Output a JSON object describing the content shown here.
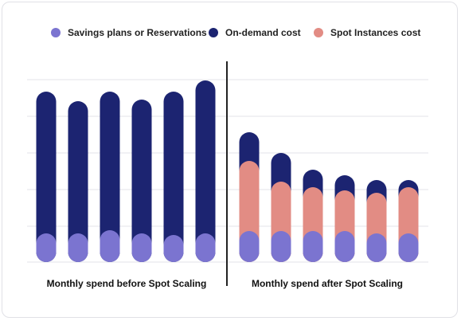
{
  "chart_data": {
    "type": "bar",
    "stacked": true,
    "grid": true,
    "legend_position": "top",
    "legend": [
      {
        "name": "Savings plans or Reservations",
        "color": "#7b74d0"
      },
      {
        "name": "On-demand cost",
        "color": "#1c2471"
      },
      {
        "name": "Spot Instances cost",
        "color": "#e28c84"
      }
    ],
    "groups": [
      {
        "label": "Monthly spend before Spot Scaling",
        "bars": [
          {
            "savings": 36,
            "spot": 0,
            "ondemand": 178
          },
          {
            "savings": 36,
            "spot": 0,
            "ondemand": 166
          },
          {
            "savings": 40,
            "spot": 0,
            "ondemand": 174
          },
          {
            "savings": 36,
            "spot": 0,
            "ondemand": 168
          },
          {
            "savings": 34,
            "spot": 0,
            "ondemand": 180
          },
          {
            "savings": 36,
            "spot": 0,
            "ondemand": 192
          }
        ]
      },
      {
        "label": "Monthly spend after Spot Scaling",
        "bars": [
          {
            "savings": 39,
            "spot": 88,
            "ondemand": 36
          },
          {
            "savings": 39,
            "spot": 62,
            "ondemand": 36
          },
          {
            "savings": 39,
            "spot": 55,
            "ondemand": 22
          },
          {
            "savings": 39,
            "spot": 51,
            "ondemand": 19
          },
          {
            "savings": 36,
            "spot": 51,
            "ondemand": 16
          },
          {
            "savings": 36,
            "spot": 58,
            "ondemand": 9
          }
        ]
      }
    ]
  }
}
